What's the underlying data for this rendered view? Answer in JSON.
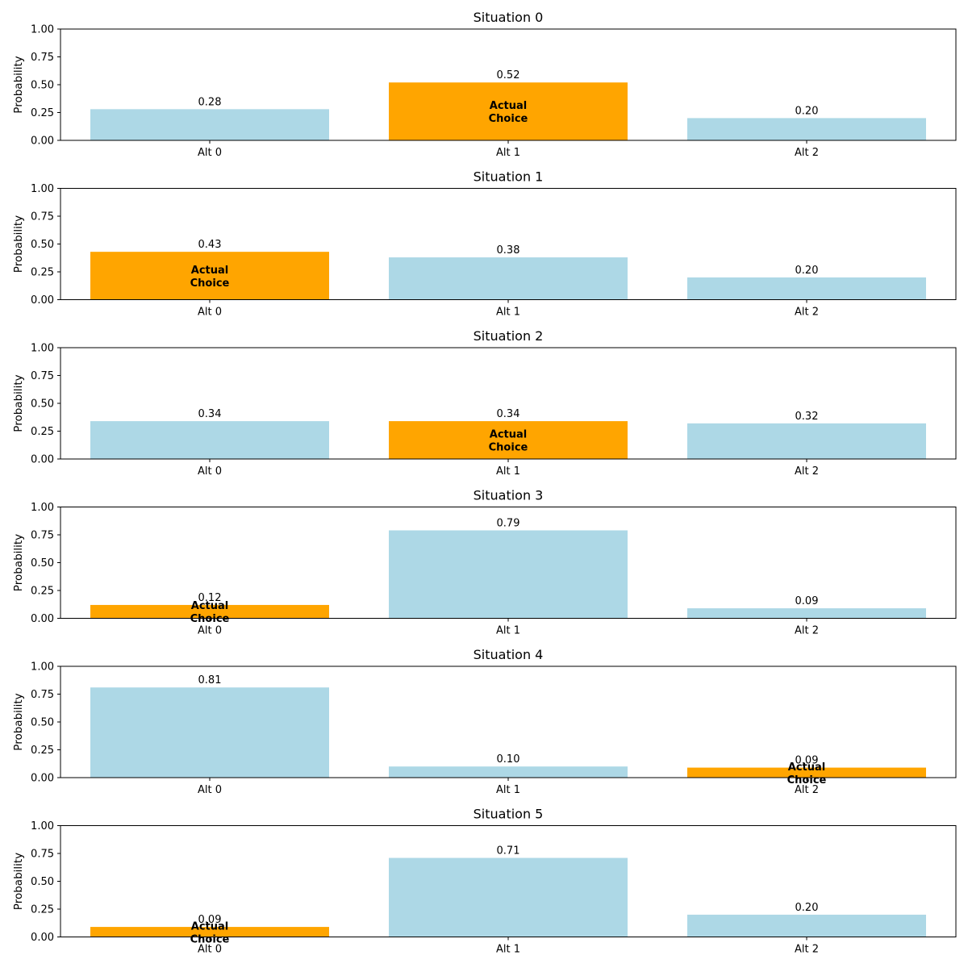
{
  "colors": {
    "default_bar": "#add8e6",
    "actual_bar": "#ffa500",
    "axis": "#000000",
    "text": "#000000"
  },
  "chart_data": [
    {
      "type": "bar",
      "title": "Situation 0",
      "ylabel": "Probability",
      "categories": [
        "Alt 0",
        "Alt 1",
        "Alt 2"
      ],
      "values": [
        0.28,
        0.52,
        0.2
      ],
      "value_labels": [
        "0.28",
        "0.52",
        "0.20"
      ],
      "actual_choice_index": 1,
      "actual_choice_label": [
        "Actual",
        "Choice"
      ],
      "ylim": [
        0,
        1
      ],
      "yticks": [
        "0.00",
        "0.25",
        "0.50",
        "0.75",
        "1.00"
      ]
    },
    {
      "type": "bar",
      "title": "Situation 1",
      "ylabel": "Probability",
      "categories": [
        "Alt 0",
        "Alt 1",
        "Alt 2"
      ],
      "values": [
        0.43,
        0.38,
        0.2
      ],
      "value_labels": [
        "0.43",
        "0.38",
        "0.20"
      ],
      "actual_choice_index": 0,
      "actual_choice_label": [
        "Actual",
        "Choice"
      ],
      "ylim": [
        0,
        1
      ],
      "yticks": [
        "0.00",
        "0.25",
        "0.50",
        "0.75",
        "1.00"
      ]
    },
    {
      "type": "bar",
      "title": "Situation 2",
      "ylabel": "Probability",
      "categories": [
        "Alt 0",
        "Alt 1",
        "Alt 2"
      ],
      "values": [
        0.34,
        0.34,
        0.32
      ],
      "value_labels": [
        "0.34",
        "0.34",
        "0.32"
      ],
      "actual_choice_index": 1,
      "actual_choice_label": [
        "Actual",
        "Choice"
      ],
      "ylim": [
        0,
        1
      ],
      "yticks": [
        "0.00",
        "0.25",
        "0.50",
        "0.75",
        "1.00"
      ]
    },
    {
      "type": "bar",
      "title": "Situation 3",
      "ylabel": "Probability",
      "categories": [
        "Alt 0",
        "Alt 1",
        "Alt 2"
      ],
      "values": [
        0.12,
        0.79,
        0.09
      ],
      "value_labels": [
        "0.12",
        "0.79",
        "0.09"
      ],
      "actual_choice_index": 0,
      "actual_choice_label": [
        "Actual",
        "Choice"
      ],
      "ylim": [
        0,
        1
      ],
      "yticks": [
        "0.00",
        "0.25",
        "0.50",
        "0.75",
        "1.00"
      ]
    },
    {
      "type": "bar",
      "title": "Situation 4",
      "ylabel": "Probability",
      "categories": [
        "Alt 0",
        "Alt 1",
        "Alt 2"
      ],
      "values": [
        0.81,
        0.1,
        0.09
      ],
      "value_labels": [
        "0.81",
        "0.10",
        "0.09"
      ],
      "actual_choice_index": 2,
      "actual_choice_label": [
        "Actual",
        "Choice"
      ],
      "ylim": [
        0,
        1
      ],
      "yticks": [
        "0.00",
        "0.25",
        "0.50",
        "0.75",
        "1.00"
      ]
    },
    {
      "type": "bar",
      "title": "Situation 5",
      "ylabel": "Probability",
      "categories": [
        "Alt 0",
        "Alt 1",
        "Alt 2"
      ],
      "values": [
        0.09,
        0.71,
        0.2
      ],
      "value_labels": [
        "0.09",
        "0.71",
        "0.20"
      ],
      "actual_choice_index": 0,
      "actual_choice_label": [
        "Actual",
        "Choice"
      ],
      "ylim": [
        0,
        1
      ],
      "yticks": [
        "0.00",
        "0.25",
        "0.50",
        "0.75",
        "1.00"
      ]
    }
  ]
}
